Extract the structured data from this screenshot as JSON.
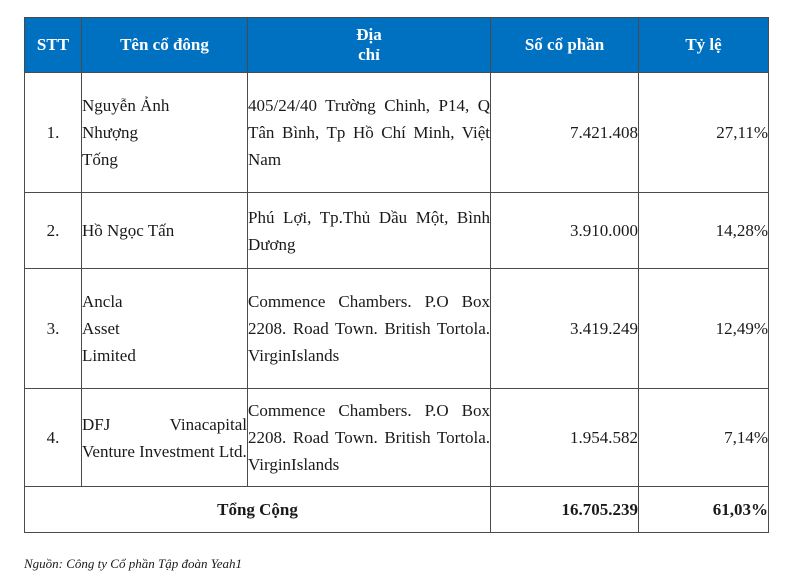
{
  "table": {
    "headers": {
      "stt": "STT",
      "name": "Tên cổ đông",
      "address_line1": "Địa",
      "address_line2": "chỉ",
      "shares": "Số cổ phần",
      "ratio": "Tỷ lệ"
    },
    "rows": [
      {
        "stt": "1.",
        "name_lines": [
          "Nguyễn Ảnh",
          "Nhượng",
          "Tống"
        ],
        "address": "405/24/40 Trường Chinh, P14, Q Tân Bình, Tp Hồ Chí Minh, Việt Nam",
        "shares": "7.421.408",
        "ratio": "27,11%"
      },
      {
        "stt": "2.",
        "name_lines": [
          "Hồ Ngọc Tấn"
        ],
        "address": "Phú Lợi, Tp.Thủ Dầu Một, Bình Dương",
        "shares": "3.910.000",
        "ratio": "14,28%"
      },
      {
        "stt": "3.",
        "name_lines": [
          "Ancla",
          "Asset",
          "Limited"
        ],
        "address": "Commence Chambers. P.O Box 2208. Road Town. British Tortola. VirginIslands",
        "shares": "3.419.249",
        "ratio": "12,49%"
      },
      {
        "stt": "4.",
        "name_lines": [
          "DFJ Vinacapital Venture Investment Ltd."
        ],
        "address": "Commence Chambers. P.O Box 2208. Road Town. British Tortola. VirginIslands",
        "shares": "1.954.582",
        "ratio": "7,14%"
      }
    ],
    "total": {
      "label": "Tổng Cộng",
      "shares": "16.705.239",
      "ratio": "61,03%"
    }
  },
  "source": "Nguồn: Công ty Cổ phần Tập đoàn Yeah1",
  "colors": {
    "header_bg": "#0070c0",
    "header_text": "#ffffff",
    "border": "#4a4a4a"
  }
}
